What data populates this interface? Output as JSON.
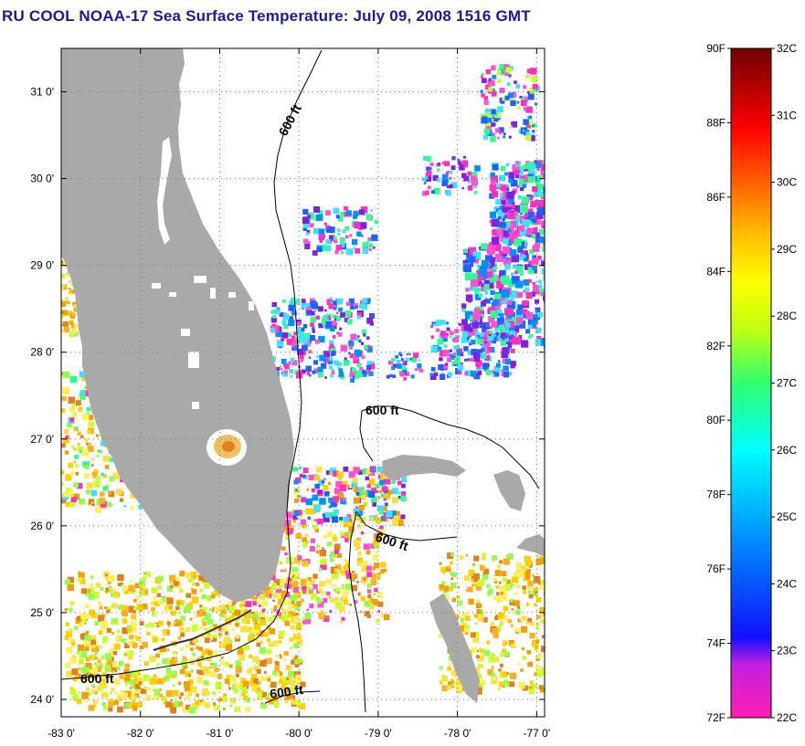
{
  "title": "RU COOL  NOAA-17  Sea Surface Temperature:  July 09, 2008 1516 GMT",
  "map": {
    "lon_range": [
      -83.0,
      -76.9
    ],
    "lat_range": [
      23.8,
      31.5
    ],
    "x_ticks": [
      {
        "value": -83,
        "label": "-83 0'"
      },
      {
        "value": -82,
        "label": "-82 0'"
      },
      {
        "value": -81,
        "label": "-81 0'"
      },
      {
        "value": -80,
        "label": "-80 0'"
      },
      {
        "value": -79,
        "label": "-79 0'"
      },
      {
        "value": -78,
        "label": "-78 0'"
      },
      {
        "value": -77,
        "label": "-77 0'"
      }
    ],
    "y_ticks": [
      {
        "value": 31,
        "label": "31 0'"
      },
      {
        "value": 30,
        "label": "30 0'"
      },
      {
        "value": 29,
        "label": "29 0'"
      },
      {
        "value": 28,
        "label": "28 0'"
      },
      {
        "value": 27,
        "label": "27 0'"
      },
      {
        "value": 26,
        "label": "26 0'"
      },
      {
        "value": 25,
        "label": "25 0'"
      },
      {
        "value": 24,
        "label": "24 0'"
      }
    ],
    "contour_labels": [
      "600 ft",
      "600 ft",
      "600 ft",
      "600 ft",
      "600 ft"
    ],
    "grid": "dotted",
    "land_color": "#a9a9a9"
  },
  "colorbar": {
    "fahrenheit_labels": [
      "90F",
      "88F",
      "86F",
      "84F",
      "82F",
      "80F",
      "78F",
      "76F",
      "74F",
      "72F"
    ],
    "celsius_labels": [
      "32C",
      "31C",
      "30C",
      "29C",
      "28C",
      "27C",
      "26C",
      "25C",
      "24C",
      "23C",
      "22C"
    ],
    "range_c": [
      22,
      32
    ],
    "colors": [
      "#ff1fb0",
      "#a020f0",
      "#1010ff",
      "#0088ff",
      "#00e6ff",
      "#20ff80",
      "#c8ff00",
      "#ffff00",
      "#ffb000",
      "#ff6000",
      "#ff0000",
      "#a00000",
      "#600000"
    ]
  }
}
